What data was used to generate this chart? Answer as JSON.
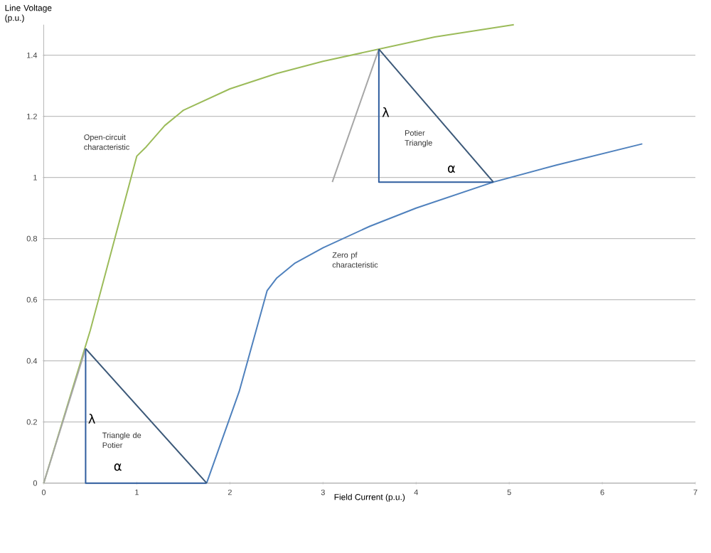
{
  "chart_data": {
    "type": "line",
    "xlabel": "Field Current (p.u.)",
    "ylabel": "Line Voltage (p.u.)",
    "xlim": [
      0,
      7
    ],
    "ylim": [
      0,
      1.5
    ],
    "xticks": [
      0,
      1,
      2,
      3,
      4,
      5,
      6,
      7
    ],
    "yticks": [
      0,
      0.2,
      0.4,
      0.6,
      0.8,
      1,
      1.2,
      1.4
    ],
    "grid": "y",
    "marker": "none",
    "line_style": "solid",
    "series": [
      {
        "color": "#9bbb59",
        "x": [
          0,
          0.5,
          1.0,
          1.1,
          1.3,
          1.5,
          2,
          2.5,
          3,
          3.6,
          4.2,
          5.05
        ],
        "values": [
          0,
          0.5,
          1.07,
          1.1,
          1.17,
          1.22,
          1.29,
          1.34,
          1.38,
          1.42,
          1.46,
          1.5
        ]
      },
      {
        "color": "#4f81bd",
        "x": [
          1.75,
          2.1,
          2.4,
          2.5,
          2.7,
          3,
          3.5,
          4,
          4.83,
          5.5,
          6.43
        ],
        "values": [
          0,
          0.3,
          0.63,
          0.67,
          0.72,
          0.77,
          0.84,
          0.9,
          0.985,
          1.04,
          1.11
        ]
      },
      {
        "color": "#a6a6a6",
        "x": [
          0,
          0.45
        ],
        "values": [
          0,
          0.44
        ]
      },
      {
        "color": "#a6a6a6",
        "x": [
          3.1,
          3.6
        ],
        "values": [
          0.985,
          1.42
        ]
      },
      {
        "color": "#2e5c9e",
        "x": [
          0.45,
          0.45,
          1.75
        ],
        "values": [
          0.44,
          0,
          0
        ]
      },
      {
        "color": "#3b5878",
        "x": [
          0.45,
          1.75
        ],
        "values": [
          0.44,
          0
        ]
      },
      {
        "color": "#2e5c9e",
        "x": [
          3.6,
          3.6,
          4.83
        ],
        "values": [
          1.42,
          0.985,
          0.985
        ]
      },
      {
        "color": "#3b5878",
        "x": [
          3.6,
          4.83
        ],
        "values": [
          1.42,
          0.985
        ]
      }
    ],
    "annotations": [
      "Open-circuit characteristic",
      "Zero pf characteristic",
      "Potier Triangle",
      "Triangle de Potier",
      "λ",
      "α",
      "λ",
      "α"
    ]
  }
}
